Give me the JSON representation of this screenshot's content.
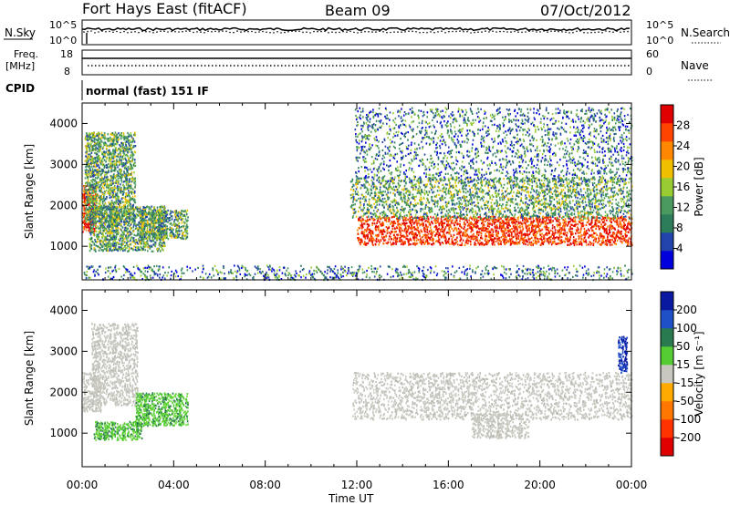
{
  "header": {
    "station": "Fort Hays East (fitACF)",
    "beam": "Beam 09",
    "date": "07/Oct/2012"
  },
  "top_panels": {
    "nsky_label": "N.Sky",
    "nsky_ticks": [
      "10^5",
      "10^0"
    ],
    "nsearch_label": "N.Search",
    "nsearch_ticks": [
      "10^5",
      "10^0"
    ],
    "freq_label": "Freq.",
    "freq_unit": "[MHz]",
    "freq_ticks": [
      "18",
      "8"
    ],
    "nave_label": "Nave",
    "nave_ticks": [
      "60",
      "0"
    ],
    "cpid_label": "CPID",
    "cpid_value": "normal (fast) 151 IF"
  },
  "chart_data": [
    {
      "type": "heatmap",
      "name": "power-panel",
      "ylabel": "Slant Range [km]",
      "xlabel": "",
      "x_ticks": [
        "00:00",
        "04:00",
        "08:00",
        "12:00",
        "16:00",
        "20:00",
        "00:00"
      ],
      "x_range_hours": [
        0,
        24
      ],
      "y_ticks": [
        1000,
        2000,
        3000,
        4000
      ],
      "y_range_km": [
        180,
        4500
      ],
      "colorbar": {
        "label": "Power [dB]",
        "ticks": [
          4,
          8,
          12,
          16,
          20,
          24,
          28
        ],
        "range": [
          0,
          32
        ],
        "colors": [
          "#0000dd",
          "#2244aa",
          "#2e7d5a",
          "#4a9a60",
          "#99cc33",
          "#f0c000",
          "#ff8800",
          "#ff4400",
          "#e00000"
        ]
      },
      "regions": [
        {
          "t0": 0.0,
          "t1": 0.6,
          "r0": 1350,
          "r1": 2500,
          "level": "high"
        },
        {
          "t0": 0.1,
          "t1": 2.3,
          "r0": 1600,
          "r1": 3800,
          "level": "medium"
        },
        {
          "t0": 0.3,
          "t1": 3.6,
          "r0": 900,
          "r1": 2000,
          "level": "medium"
        },
        {
          "t0": 2.5,
          "t1": 4.6,
          "r0": 1200,
          "r1": 1900,
          "level": "medium"
        },
        {
          "t0": 0.0,
          "t1": 24.0,
          "r0": 200,
          "r1": 550,
          "level": "low"
        },
        {
          "t0": 12.0,
          "t1": 24.0,
          "r0": 1050,
          "r1": 1750,
          "level": "high"
        },
        {
          "t0": 11.7,
          "t1": 24.0,
          "r0": 1700,
          "r1": 2700,
          "level": "medium"
        },
        {
          "t0": 11.9,
          "t1": 24.0,
          "r0": 2600,
          "r1": 4400,
          "level": "low"
        }
      ]
    },
    {
      "type": "heatmap",
      "name": "velocity-panel",
      "ylabel": "Slant Range [km]",
      "xlabel": "Time UT",
      "x_ticks": [
        "00:00",
        "04:00",
        "08:00",
        "12:00",
        "16:00",
        "20:00",
        "00:00"
      ],
      "x_range_hours": [
        0,
        24
      ],
      "y_ticks": [
        1000,
        2000,
        3000,
        4000
      ],
      "y_range_km": [
        180,
        4500
      ],
      "colorbar": {
        "label": "Velocity [m s⁻¹]",
        "ticks": [
          200,
          100,
          50,
          15,
          -15,
          -50,
          -100,
          -200
        ],
        "colors": [
          "#0a1aa0",
          "#2050c8",
          "#2a7a50",
          "#55cc33",
          "#c8c8c0",
          "#ffaa00",
          "#ff7700",
          "#ff3300",
          "#e00000"
        ]
      },
      "regions": [
        {
          "t0": 0.0,
          "t1": 0.8,
          "r0": 1550,
          "r1": 2500,
          "level": "ground"
        },
        {
          "t0": 0.4,
          "t1": 2.4,
          "r0": 1700,
          "r1": 3700,
          "level": "ground"
        },
        {
          "t0": 2.3,
          "t1": 4.6,
          "r0": 1200,
          "r1": 2000,
          "level": "positive"
        },
        {
          "t0": 0.5,
          "t1": 2.6,
          "r0": 850,
          "r1": 1300,
          "level": "positive"
        },
        {
          "t0": 11.8,
          "t1": 24.0,
          "r0": 1350,
          "r1": 2500,
          "level": "ground"
        },
        {
          "t0": 17.0,
          "t1": 19.5,
          "r0": 900,
          "r1": 1500,
          "level": "ground"
        },
        {
          "t0": 23.4,
          "t1": 23.8,
          "r0": 2500,
          "r1": 3400,
          "level": "strong_positive"
        }
      ]
    }
  ]
}
